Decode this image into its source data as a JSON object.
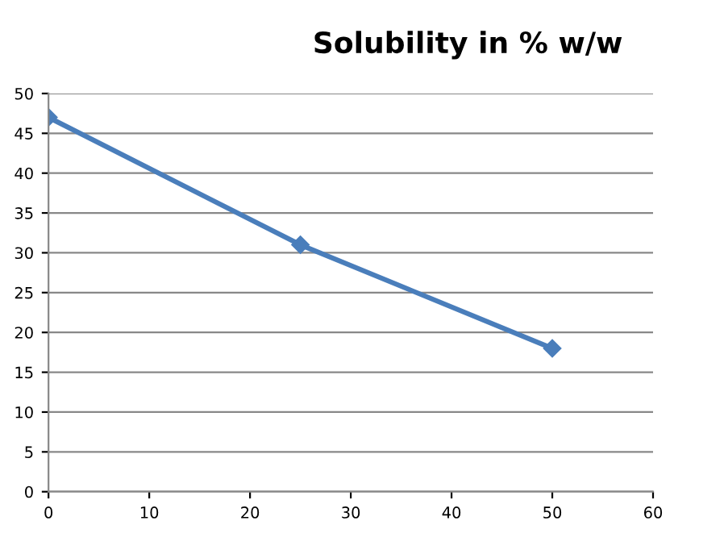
{
  "chart_data": {
    "type": "line",
    "title": "Solubility in % w/w",
    "x": [
      0,
      25,
      50
    ],
    "series": [
      {
        "color": "#4a7ebb",
        "values": [
          47,
          31,
          18
        ]
      }
    ],
    "xlim": [
      0,
      60
    ],
    "xticks": [
      0,
      10,
      20,
      30,
      40,
      50,
      60
    ],
    "ylim": [
      0,
      50
    ],
    "yticks": [
      0,
      5,
      10,
      15,
      20,
      25,
      30,
      35,
      40,
      45,
      50
    ],
    "grid": "y",
    "marker": "diamond",
    "line_style": "solid",
    "legend": false
  }
}
